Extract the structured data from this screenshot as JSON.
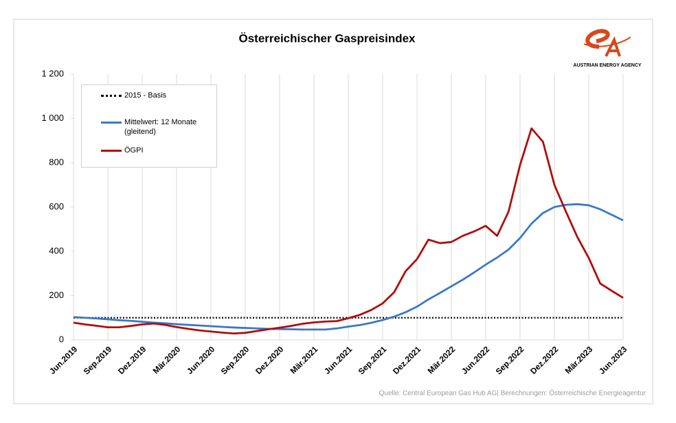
{
  "chart_data": {
    "type": "line",
    "title": "Österreichischer  Gaspreisindex",
    "logo_text": "AUSTRIAN ENERGY AGENCY",
    "source": "Quelle: Central European Gas Hub AG| Berechnungen: Österreichische Energieagentur",
    "categories": [
      "Jun.2019",
      null,
      null,
      "Sep.2019",
      null,
      null,
      "Dez.2019",
      null,
      null,
      "Mär.2020",
      null,
      null,
      "Jun.2020",
      null,
      null,
      "Sep.2020",
      null,
      null,
      "Dez.2020",
      null,
      null,
      "Mär.2021",
      null,
      null,
      "Jun.2021",
      null,
      null,
      "Sep.2021",
      null,
      null,
      "Dez.2021",
      null,
      null,
      "Mär.2022",
      null,
      null,
      "Jun.2022",
      null,
      null,
      "Sep.2022",
      null,
      null,
      "Dez.2022",
      null,
      null,
      "Mär.2023",
      null,
      null,
      "Jun.2023"
    ],
    "series": [
      {
        "name": "2015 - Basis",
        "color": "#000000",
        "style": "dotted",
        "values": [
          100,
          100,
          100,
          100,
          100,
          100,
          100,
          100,
          100,
          100,
          100,
          100,
          100,
          100,
          100,
          100,
          100,
          100,
          100,
          100,
          100,
          100,
          100,
          100,
          100,
          100,
          100,
          100,
          100,
          100,
          100,
          100,
          100,
          100,
          100,
          100,
          100,
          100,
          100,
          100,
          100,
          100,
          100,
          100,
          100,
          100,
          100,
          100,
          100
        ]
      },
      {
        "name": "Mittelwert: 12 Monate (gleitend)",
        "color": "#3a78c8",
        "style": "solid",
        "values": [
          103,
          100,
          97,
          93,
          89,
          86,
          82,
          78,
          75,
          71,
          68,
          65,
          62,
          59,
          56,
          54,
          52,
          50,
          49,
          48,
          47,
          47,
          47,
          52,
          60,
          67,
          77,
          90,
          105,
          125,
          150,
          183,
          212,
          242,
          272,
          305,
          340,
          372,
          408,
          460,
          525,
          573,
          600,
          610,
          613,
          608,
          590,
          565,
          540
        ]
      },
      {
        "name": "ÖGPI",
        "color": "#b00c0c",
        "style": "solid",
        "values": [
          78,
          70,
          64,
          57,
          57,
          63,
          70,
          74,
          68,
          58,
          50,
          43,
          38,
          33,
          29,
          32,
          40,
          48,
          55,
          63,
          73,
          79,
          83,
          85,
          98,
          113,
          135,
          165,
          215,
          310,
          365,
          453,
          437,
          442,
          470,
          490,
          515,
          470,
          580,
          790,
          955,
          895,
          700,
          580,
          465,
          370,
          255,
          222,
          190
        ]
      }
    ],
    "ylim": [
      0,
      1200
    ],
    "yticks": [
      0,
      200,
      400,
      600,
      800,
      {
        "value": 1000,
        "label": "1 000"
      },
      {
        "value": 1200,
        "label": "1 200"
      }
    ]
  }
}
